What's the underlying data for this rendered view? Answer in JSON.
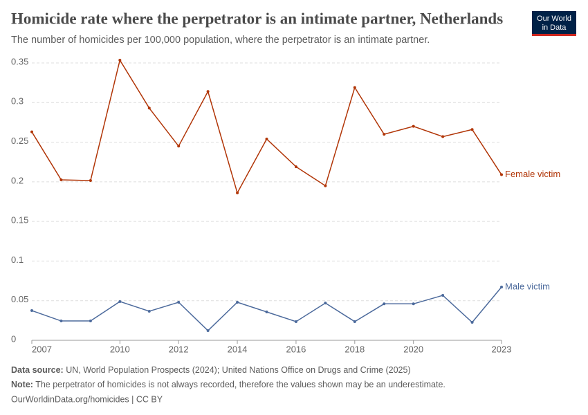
{
  "chart_data": {
    "type": "line",
    "title": "Homicide rate where the perpetrator is an intimate partner, Netherlands",
    "subtitle": "The number of homicides per 100,000 population, where the perpetrator is an intimate partner.",
    "x": [
      2007,
      2008,
      2009,
      2010,
      2011,
      2012,
      2013,
      2014,
      2015,
      2016,
      2017,
      2018,
      2019,
      2020,
      2021,
      2022,
      2023
    ],
    "series": [
      {
        "name": "Female victim",
        "color": "#b13507",
        "values": [
          0.263,
          0.2025,
          0.2016,
          0.3535,
          0.293,
          0.245,
          0.314,
          0.186,
          0.254,
          0.219,
          0.195,
          0.319,
          0.26,
          0.27,
          0.257,
          0.266,
          0.209
        ]
      },
      {
        "name": "Male victim",
        "color": "#4c6a9c",
        "values": [
          0.0375,
          0.0244,
          0.0244,
          0.0489,
          0.0367,
          0.048,
          0.0122,
          0.048,
          0.0358,
          0.0236,
          0.047,
          0.0236,
          0.046,
          0.046,
          0.0567,
          0.0227,
          0.0672
        ]
      }
    ],
    "xlim": [
      2007,
      2023
    ],
    "xticks": [
      2007,
      2010,
      2012,
      2014,
      2016,
      2018,
      2020,
      2023
    ],
    "ylim": [
      0,
      0.35
    ],
    "yticks": [
      0,
      0.05,
      0.1,
      0.15,
      0.2,
      0.25,
      0.3,
      0.35
    ],
    "grid": true,
    "source_label": "Data source:",
    "source": "UN, World Population Prospects (2024); United Nations Office on Drugs and Crime (2025)",
    "note_label": "Note:",
    "note": "The perpetrator of homicides is not always recorded, therefore the values shown may be an underestimate.",
    "url": "OurWorldinData.org/homicides | CC BY",
    "logo": [
      "Our World",
      "in Data"
    ]
  }
}
